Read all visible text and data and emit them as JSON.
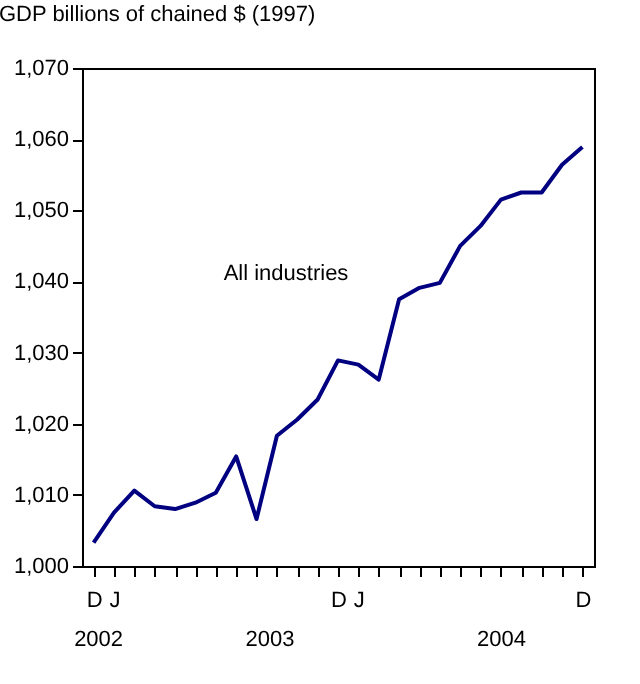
{
  "chart_data": {
    "type": "line",
    "ylabel": "GDP billions of chained $ (1997)",
    "categories": [
      "D",
      "J",
      null,
      null,
      null,
      null,
      null,
      null,
      null,
      null,
      null,
      null,
      "D",
      "J",
      null,
      null,
      null,
      null,
      null,
      null,
      null,
      null,
      null,
      null,
      "D"
    ],
    "series": [
      {
        "name": "All industries",
        "color": "#000080",
        "values": [
          1003.3,
          1007.5,
          1010.6,
          1008.4,
          1008.0,
          1008.9,
          1010.3,
          1015.4,
          1006.6,
          1018.3,
          1020.6,
          1023.4,
          1028.9,
          1028.3,
          1026.2,
          1037.5,
          1039.1,
          1039.8,
          1045.0,
          1047.8,
          1051.5,
          1052.5,
          1052.5,
          1056.4,
          1058.9
        ]
      }
    ],
    "ylim": [
      1000,
      1070
    ],
    "yticks": [
      {
        "value": 1000,
        "label": "1,000"
      },
      {
        "value": 1010,
        "label": "1,010"
      },
      {
        "value": 1020,
        "label": "1,020"
      },
      {
        "value": 1030,
        "label": "1,030"
      },
      {
        "value": 1040,
        "label": "1,040"
      },
      {
        "value": 1050,
        "label": "1,050"
      },
      {
        "value": 1060,
        "label": "1,060"
      },
      {
        "value": 1070,
        "label": "1,070"
      }
    ],
    "annotations": [
      "2002",
      "2003",
      "2004"
    ],
    "grid": false,
    "marker": "none",
    "line_style": "solid"
  }
}
